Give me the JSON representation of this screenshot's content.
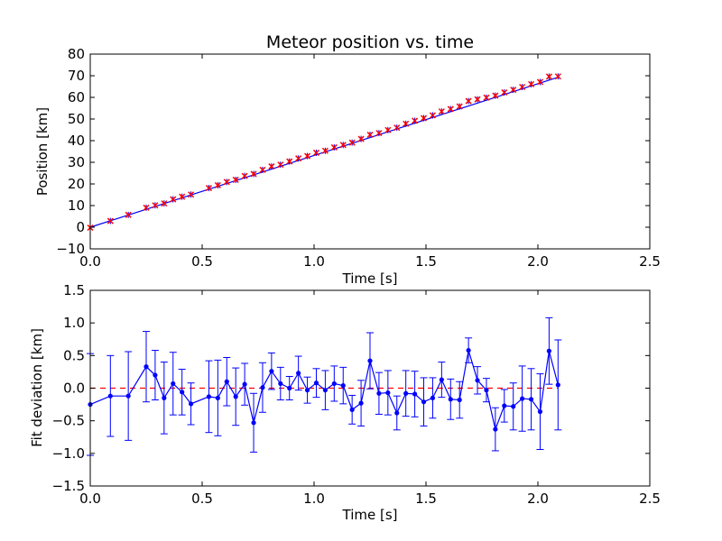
{
  "chart_data": [
    {
      "type": "scatter",
      "title": "Meteor position vs. time",
      "xlabel": "Time [s]",
      "ylabel": "Position [km]",
      "xlim": [
        0.0,
        2.5
      ],
      "ylim": [
        -10,
        80
      ],
      "xticks": [
        "0.0",
        "0.5",
        "1.0",
        "1.5",
        "2.0",
        "2.5"
      ],
      "yticks": [
        "−10",
        "0",
        "10",
        "20",
        "30",
        "40",
        "50",
        "60",
        "70",
        "80"
      ],
      "grid": false,
      "colors": {
        "points": "#ff0000",
        "errorbars": "#0000ff",
        "fit": "#0000ff"
      },
      "points": {
        "x": [
          0.0,
          0.09,
          0.17,
          0.25,
          0.29,
          0.33,
          0.37,
          0.41,
          0.45,
          0.53,
          0.57,
          0.61,
          0.65,
          0.69,
          0.73,
          0.77,
          0.81,
          0.85,
          0.89,
          0.93,
          0.97,
          1.01,
          1.05,
          1.09,
          1.13,
          1.17,
          1.21,
          1.25,
          1.29,
          1.33,
          1.37,
          1.41,
          1.45,
          1.49,
          1.53,
          1.57,
          1.61,
          1.65,
          1.69,
          1.73,
          1.77,
          1.81,
          1.85,
          1.89,
          1.93,
          1.97,
          2.01,
          2.05,
          2.09
        ],
        "y": [
          -0.2,
          2.9,
          5.7,
          9.0,
          10.1,
          11.0,
          12.9,
          14.1,
          15.1,
          18.1,
          19.4,
          20.9,
          21.9,
          23.7,
          24.6,
          26.5,
          28.1,
          28.9,
          30.4,
          31.8,
          32.9,
          34.4,
          35.3,
          36.9,
          38.0,
          39.1,
          40.8,
          42.7,
          43.5,
          44.9,
          46.0,
          47.8,
          49.2,
          50.4,
          51.7,
          53.5,
          54.6,
          55.8,
          58.3,
          59.1,
          59.9,
          60.8,
          62.3,
          63.5,
          64.8,
          66.1,
          67.1,
          69.6,
          69.7
        ]
      },
      "fit_line": {
        "x": [
          0.0,
          2.09
        ],
        "y": [
          0.0,
          69.3
        ]
      }
    },
    {
      "type": "line",
      "xlabel": "Time [s]",
      "ylabel": "Fit deviation [km]",
      "xlim": [
        0.0,
        2.5
      ],
      "ylim": [
        -1.5,
        1.5
      ],
      "xticks": [
        "0.0",
        "0.5",
        "1.0",
        "1.5",
        "2.0",
        "2.5"
      ],
      "yticks": [
        "−1.5",
        "−1.0",
        "−0.5",
        "0.0",
        "0.5",
        "1.0",
        "1.5"
      ],
      "grid": false,
      "colors": {
        "series": "#0000ff",
        "zero_line": "#ff0000"
      },
      "reference_line": {
        "y": 0.0,
        "style": "dashed"
      },
      "x": [
        0.0,
        0.09,
        0.17,
        0.25,
        0.29,
        0.33,
        0.37,
        0.41,
        0.45,
        0.53,
        0.57,
        0.61,
        0.65,
        0.69,
        0.73,
        0.77,
        0.81,
        0.85,
        0.89,
        0.93,
        0.97,
        1.01,
        1.05,
        1.09,
        1.13,
        1.17,
        1.21,
        1.25,
        1.29,
        1.33,
        1.37,
        1.41,
        1.45,
        1.49,
        1.53,
        1.57,
        1.61,
        1.65,
        1.69,
        1.73,
        1.77,
        1.81,
        1.85,
        1.89,
        1.93,
        1.97,
        2.01,
        2.05,
        2.09
      ],
      "y": [
        -0.25,
        -0.12,
        -0.12,
        0.33,
        0.2,
        -0.15,
        0.07,
        -0.06,
        -0.24,
        -0.13,
        -0.15,
        0.1,
        -0.13,
        0.06,
        -0.53,
        0.01,
        0.26,
        0.07,
        0.0,
        0.23,
        -0.03,
        0.08,
        -0.03,
        0.07,
        0.04,
        -0.33,
        -0.23,
        0.42,
        -0.08,
        -0.07,
        -0.38,
        -0.08,
        -0.09,
        -0.21,
        -0.15,
        0.13,
        -0.17,
        -0.18,
        0.58,
        0.12,
        -0.03,
        -0.63,
        -0.27,
        -0.28,
        -0.16,
        -0.17,
        -0.36,
        0.57,
        0.05
      ],
      "yerr": [
        0.78,
        0.62,
        0.68,
        0.54,
        0.38,
        0.55,
        0.48,
        0.35,
        0.32,
        0.55,
        0.58,
        0.37,
        0.44,
        0.32,
        0.45,
        0.38,
        0.28,
        0.25,
        0.18,
        0.26,
        0.2,
        0.22,
        0.3,
        0.27,
        0.28,
        0.22,
        0.35,
        0.43,
        0.32,
        0.34,
        0.26,
        0.35,
        0.35,
        0.37,
        0.31,
        0.27,
        0.31,
        0.28,
        0.19,
        0.21,
        0.18,
        0.33,
        0.25,
        0.36,
        0.5,
        0.47,
        0.58,
        0.51,
        0.69
      ]
    }
  ]
}
